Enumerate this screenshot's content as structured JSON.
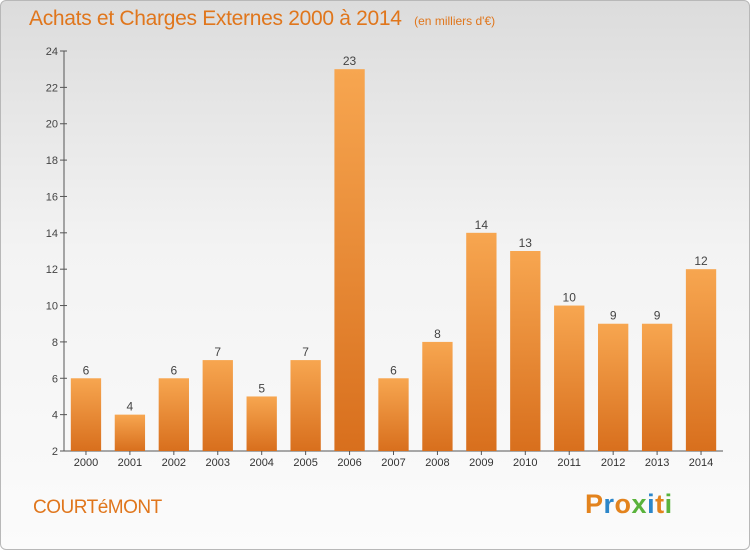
{
  "header": {
    "title": "Achats et Charges Externes 2000 à 2014",
    "subtitle": "(en milliers d'€)"
  },
  "footer": {
    "town": "COURTéMONT",
    "logo": "Proxiti"
  },
  "colors": {
    "title": "#e0761c",
    "bar_top": "#f7a650",
    "bar_bottom": "#d86f1d",
    "logo_letters": [
      "#e3831d",
      "#2c86c9",
      "#e3831d",
      "#5ab33c",
      "#2c86c9",
      "#e3831d",
      "#5ab33c"
    ]
  },
  "chart_data": {
    "type": "bar",
    "title": "Achats et Charges Externes 2000 à 2014",
    "subtitle": "(en milliers d'€)",
    "categories": [
      "2000",
      "2001",
      "2002",
      "2003",
      "2004",
      "2005",
      "2006",
      "2007",
      "2008",
      "2009",
      "2010",
      "2011",
      "2012",
      "2013",
      "2014"
    ],
    "values": [
      6,
      4,
      6,
      7,
      5,
      7,
      23,
      6,
      8,
      14,
      13,
      10,
      9,
      9,
      12
    ],
    "ylim": [
      2,
      24
    ],
    "yticks": [
      2,
      4,
      6,
      8,
      10,
      12,
      14,
      16,
      18,
      20,
      22,
      24
    ],
    "grid": false,
    "data_labels": true
  }
}
